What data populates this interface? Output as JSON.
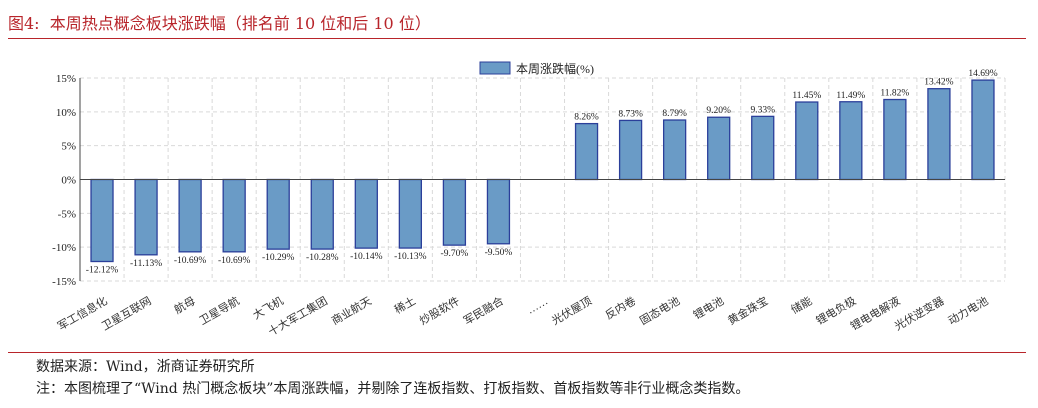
{
  "header": {
    "figure_label": "图4:",
    "title": "本周热点概念板块涨跌幅（排名前 10 位和后 10 位）"
  },
  "footer": {
    "source": "数据来源：Wind，浙商证券研究所",
    "note": "注：本图梳理了“Wind 热门概念板块”本周涨跌幅，并剔除了连板指数、打板指数、首板指数等非行业概念类指数。"
  },
  "colors": {
    "bar_fill": "#6a9bc6",
    "bar_stroke": "#2b3f9a",
    "accent": "#b8242a",
    "grid": "#d9d9d9"
  },
  "chart_data": {
    "type": "bar",
    "title": "",
    "xlabel": "",
    "ylabel": "",
    "ylim": [
      -15,
      15
    ],
    "yticks": [
      "15%",
      "10%",
      "5%",
      "0%",
      "-5%",
      "-10%",
      "-15%"
    ],
    "ytick_values": [
      15,
      10,
      5,
      0,
      -5,
      -10,
      -15
    ],
    "grid": true,
    "legend": {
      "position": "top-center",
      "entries": [
        "本周涨跌幅(%)"
      ]
    },
    "categories": [
      "军工信息化",
      "卫星互联网",
      "航母",
      "卫星导航",
      "大飞机",
      "十大军工集团",
      "商业航天",
      "稀土",
      "炒股软件",
      "军民融合",
      "……",
      "光伏屋顶",
      "反内卷",
      "固态电池",
      "锂电池",
      "黄金珠宝",
      "储能",
      "锂电负极",
      "锂电电解液",
      "光伏逆变器",
      "动力电池"
    ],
    "series": [
      {
        "name": "本周涨跌幅(%)",
        "values": [
          -12.12,
          -11.13,
          -10.69,
          -10.69,
          -10.29,
          -10.28,
          -10.14,
          -10.13,
          -9.7,
          -9.5,
          null,
          8.26,
          8.73,
          8.79,
          9.2,
          9.33,
          11.45,
          11.49,
          11.82,
          13.42,
          14.69
        ]
      }
    ],
    "data_labels": [
      "-12.12%",
      "-11.13%",
      "-10.69%",
      "-10.69%",
      "-10.29%",
      "-10.28%",
      "-10.14%",
      "-10.13%",
      "-9.70%",
      "-9.50%",
      "",
      "8.26%",
      "8.73%",
      "8.79%",
      "9.20%",
      "9.33%",
      "11.45%",
      "11.49%",
      "11.82%",
      "13.42%",
      "14.69%"
    ]
  }
}
